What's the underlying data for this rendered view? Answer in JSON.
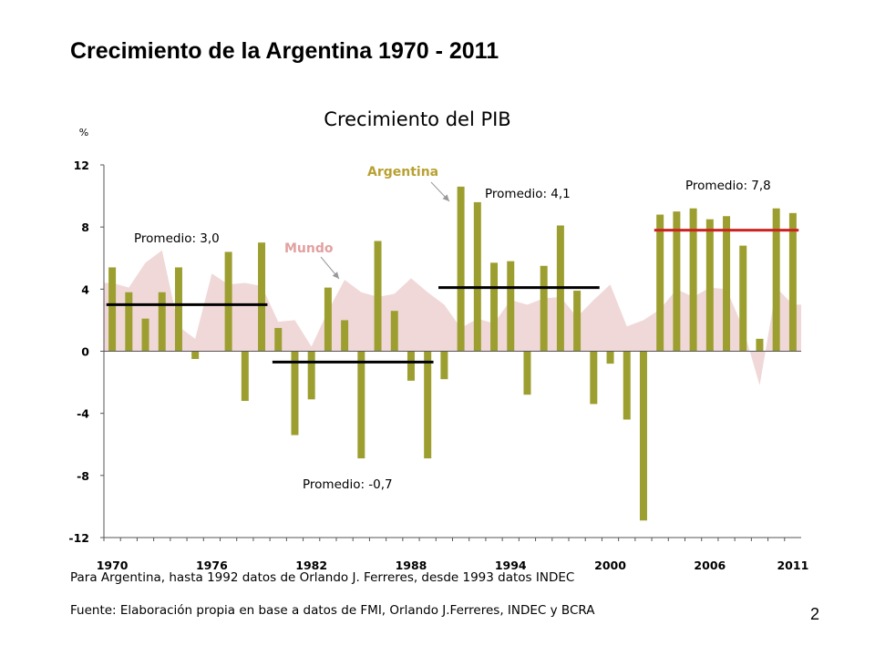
{
  "slide": {
    "title": "Crecimiento de la Argentina 1970 - 2011",
    "page_number": "2"
  },
  "notes": {
    "sources_line_1": "Para Argentina, hasta 1992 datos de Orlando J. Ferreres, desde 1993 datos INDEC",
    "sources_line_2": "Fuente: Elaboración propia en base a datos de FMI, Orlando J.Ferreres, INDEC y BCRA"
  },
  "chart_data": {
    "type": "bar",
    "title": "Crecimiento del PIB",
    "ylabel": "%",
    "ylim": [
      -12,
      12
    ],
    "yticks": [
      12,
      8,
      4,
      0,
      -4,
      -8,
      -12
    ],
    "xlabels": [
      "1970",
      "1976",
      "1982",
      "1988",
      "1994",
      "2000",
      "2006",
      "2011"
    ],
    "x": [
      1970,
      1971,
      1972,
      1973,
      1974,
      1975,
      1976,
      1977,
      1978,
      1979,
      1980,
      1981,
      1982,
      1983,
      1984,
      1985,
      1986,
      1987,
      1988,
      1989,
      1990,
      1991,
      1992,
      1993,
      1994,
      1995,
      1996,
      1997,
      1998,
      1999,
      2000,
      2001,
      2002,
      2003,
      2004,
      2005,
      2006,
      2007,
      2008,
      2009,
      2010,
      2011
    ],
    "series": [
      {
        "name": "Argentina",
        "kind": "bar",
        "color": "#9c9f30",
        "values": [
          5.4,
          3.8,
          2.1,
          3.8,
          5.4,
          -0.5,
          -0.0,
          6.4,
          -3.2,
          7.0,
          1.5,
          -5.4,
          -3.1,
          4.1,
          2.0,
          -6.9,
          7.1,
          2.6,
          -1.9,
          -6.9,
          -1.8,
          10.6,
          9.6,
          5.7,
          5.8,
          -2.8,
          5.5,
          8.1,
          3.9,
          -3.4,
          -0.8,
          -4.4,
          -10.9,
          8.8,
          9.0,
          9.2,
          8.5,
          8.7,
          6.8,
          0.8,
          9.2,
          8.9
        ]
      },
      {
        "name": "Mundo",
        "kind": "area",
        "color": "#f0d8d8",
        "values": [
          4.4,
          4.1,
          5.7,
          6.5,
          1.6,
          0.8,
          5.0,
          4.3,
          4.4,
          4.2,
          1.9,
          2.0,
          0.3,
          2.6,
          4.6,
          3.8,
          3.5,
          3.7,
          4.7,
          3.8,
          3.0,
          1.5,
          2.1,
          1.8,
          3.3,
          3.0,
          3.4,
          3.5,
          2.2,
          3.3,
          4.3,
          1.6,
          2.0,
          2.7,
          4.0,
          3.5,
          4.1,
          4.0,
          1.5,
          -2.2,
          4.1,
          3.0
        ]
      }
    ],
    "averages": [
      {
        "label": "Promedio: 3,0",
        "value": 3.0,
        "from": 1970,
        "to": 1979,
        "color": "#000000"
      },
      {
        "label": "Promedio: -0,7",
        "value": -0.7,
        "from": 1980,
        "to": 1989,
        "color": "#000000"
      },
      {
        "label": "Promedio: 4,1",
        "value": 4.1,
        "from": 1990,
        "to": 1999,
        "color": "#000000"
      },
      {
        "label": "Promedio: 7,8",
        "value": 7.8,
        "from": 2003,
        "to": 2011,
        "color": "#cc2222"
      }
    ],
    "annotations": [
      {
        "text": "Argentina",
        "color": "#b8a132"
      },
      {
        "text": "Mundo",
        "color": "#e3a0a0"
      }
    ]
  }
}
